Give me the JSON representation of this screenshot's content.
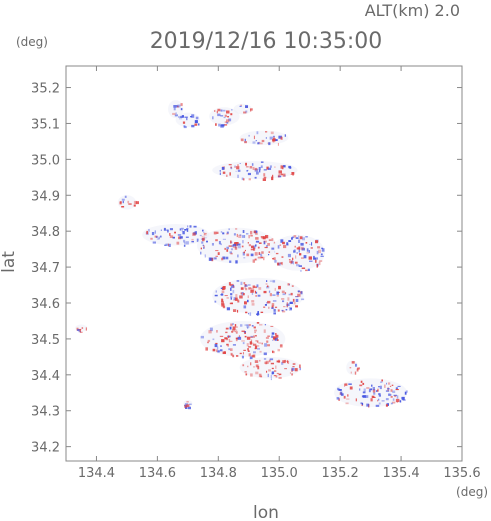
{
  "chart_data": {
    "type": "scatter",
    "alt_label": "ALT(km)  2.0",
    "title": "2019/12/16 10:35:00",
    "y_unit": "(deg)",
    "x_unit": "(deg)",
    "xlabel": "lon",
    "ylabel": "lat",
    "xlim": [
      134.3,
      135.6
    ],
    "ylim": [
      34.16,
      35.26
    ],
    "x_ticks": [
      134.4,
      134.6,
      134.8,
      135.0,
      135.2,
      135.4,
      135.6
    ],
    "x_tick_labels": [
      "134.4",
      "134.6",
      "134.8",
      "135.0",
      "135.2",
      "135.4",
      "135.6"
    ],
    "y_ticks": [
      34.2,
      34.3,
      34.4,
      34.5,
      34.6,
      34.7,
      34.8,
      34.9,
      35.0,
      35.1,
      35.2
    ],
    "y_tick_labels": [
      "34.2",
      "34.3",
      "34.4",
      "34.5",
      "34.6",
      "34.7",
      "34.8",
      "34.9",
      "35.0",
      "35.1",
      "35.2"
    ],
    "grid": false,
    "colors": {
      "positive": "#e04040",
      "negative": "#4050e0",
      "axis": "#888888",
      "text": "#6a6a6a"
    },
    "clusters": [
      {
        "lon": 134.66,
        "lat": 35.14,
        "w": 0.05,
        "h": 0.05,
        "sign": "mixed"
      },
      {
        "lon": 134.7,
        "lat": 35.11,
        "w": 0.08,
        "h": 0.04,
        "sign": "negative"
      },
      {
        "lon": 134.82,
        "lat": 35.12,
        "w": 0.1,
        "h": 0.05,
        "sign": "mixed"
      },
      {
        "lon": 134.88,
        "lat": 35.14,
        "w": 0.06,
        "h": 0.03,
        "sign": "positive"
      },
      {
        "lon": 134.95,
        "lat": 35.06,
        "w": 0.16,
        "h": 0.04,
        "sign": "mixed"
      },
      {
        "lon": 134.92,
        "lat": 34.97,
        "w": 0.28,
        "h": 0.05,
        "sign": "mixed"
      },
      {
        "lon": 134.5,
        "lat": 34.88,
        "w": 0.06,
        "h": 0.04,
        "sign": "positive"
      },
      {
        "lon": 134.66,
        "lat": 34.79,
        "w": 0.22,
        "h": 0.06,
        "sign": "negative"
      },
      {
        "lon": 134.86,
        "lat": 34.76,
        "w": 0.26,
        "h": 0.1,
        "sign": "mixed"
      },
      {
        "lon": 135.06,
        "lat": 34.74,
        "w": 0.18,
        "h": 0.1,
        "sign": "mixed"
      },
      {
        "lon": 134.93,
        "lat": 34.62,
        "w": 0.3,
        "h": 0.1,
        "sign": "mixed"
      },
      {
        "lon": 134.88,
        "lat": 34.5,
        "w": 0.28,
        "h": 0.1,
        "sign": "positive"
      },
      {
        "lon": 134.97,
        "lat": 34.42,
        "w": 0.2,
        "h": 0.06,
        "sign": "positive"
      },
      {
        "lon": 134.35,
        "lat": 34.53,
        "w": 0.04,
        "h": 0.02,
        "sign": "positive"
      },
      {
        "lon": 134.7,
        "lat": 34.32,
        "w": 0.03,
        "h": 0.02,
        "sign": "negative"
      },
      {
        "lon": 135.3,
        "lat": 34.35,
        "w": 0.24,
        "h": 0.08,
        "sign": "mixed"
      },
      {
        "lon": 135.24,
        "lat": 34.42,
        "w": 0.04,
        "h": 0.04,
        "sign": "positive"
      }
    ]
  }
}
